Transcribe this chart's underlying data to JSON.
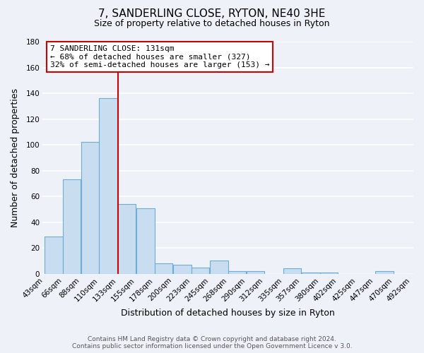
{
  "title": "7, SANDERLING CLOSE, RYTON, NE40 3HE",
  "subtitle": "Size of property relative to detached houses in Ryton",
  "xlabel": "Distribution of detached houses by size in Ryton",
  "ylabel": "Number of detached properties",
  "bar_labels": [
    "43sqm",
    "66sqm",
    "88sqm",
    "110sqm",
    "133sqm",
    "155sqm",
    "178sqm",
    "200sqm",
    "223sqm",
    "245sqm",
    "268sqm",
    "290sqm",
    "312sqm",
    "335sqm",
    "357sqm",
    "380sqm",
    "402sqm",
    "425sqm",
    "447sqm",
    "470sqm",
    "492sqm"
  ],
  "bar_values": [
    29,
    73,
    102,
    136,
    54,
    51,
    8,
    7,
    5,
    10,
    2,
    2,
    0,
    4,
    1,
    1,
    0,
    0,
    2,
    0
  ],
  "bin_edges": [
    43,
    66,
    88,
    110,
    133,
    155,
    178,
    200,
    223,
    245,
    268,
    290,
    312,
    335,
    357,
    380,
    402,
    425,
    447,
    470,
    492
  ],
  "bar_color": "#c9ddf0",
  "bar_edge_color": "#6aaed6",
  "ylim": [
    0,
    180
  ],
  "yticks": [
    0,
    20,
    40,
    60,
    80,
    100,
    120,
    140,
    160,
    180
  ],
  "vline_x": 133,
  "property_line_label": "7 SANDERLING CLOSE: 131sqm",
  "annotation_line1": "← 68% of detached houses are smaller (327)",
  "annotation_line2": "32% of semi-detached houses are larger (153) →",
  "vline_color": "#cc0000",
  "annotation_box_color": "#ffffff",
  "annotation_box_edge": "#cc0000",
  "footer_line1": "Contains HM Land Registry data © Crown copyright and database right 2024.",
  "footer_line2": "Contains public sector information licensed under the Open Government Licence v 3.0.",
  "background_color": "#eef2f8",
  "plot_bg_color": "#eef2f8",
  "grid_color": "#ffffff",
  "title_fontsize": 11,
  "subtitle_fontsize": 9,
  "ylabel_fontsize": 9,
  "xlabel_fontsize": 9,
  "tick_fontsize": 7.5,
  "footer_fontsize": 6.5,
  "annot_fontsize": 8
}
